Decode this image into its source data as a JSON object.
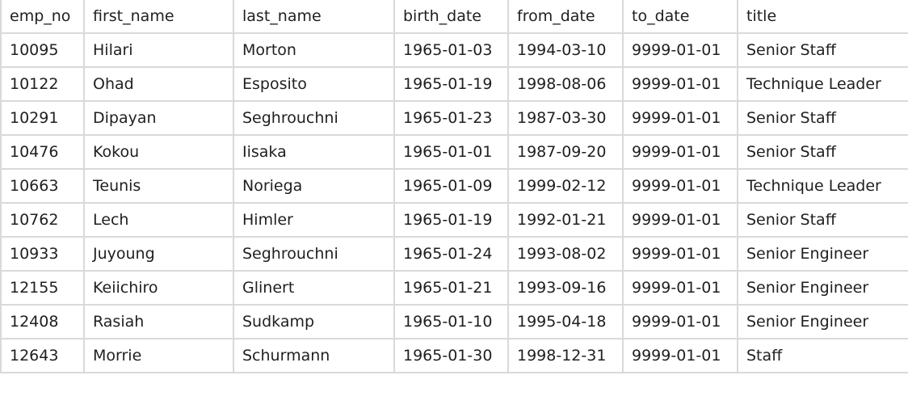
{
  "table": {
    "columns": [
      "emp_no",
      "first_name",
      "last_name",
      "birth_date",
      "from_date",
      "to_date",
      "title"
    ],
    "rows": [
      [
        "10095",
        "Hilari",
        "Morton",
        "1965-01-03",
        "1994-03-10",
        "9999-01-01",
        "Senior Staff"
      ],
      [
        "10122",
        "Ohad",
        "Esposito",
        "1965-01-19",
        "1998-08-06",
        "9999-01-01",
        "Technique Leader"
      ],
      [
        "10291",
        "Dipayan",
        "Seghrouchni",
        "1965-01-23",
        "1987-03-30",
        "9999-01-01",
        "Senior Staff"
      ],
      [
        "10476",
        "Kokou",
        "Iisaka",
        "1965-01-01",
        "1987-09-20",
        "9999-01-01",
        "Senior Staff"
      ],
      [
        "10663",
        "Teunis",
        "Noriega",
        "1965-01-09",
        "1999-02-12",
        "9999-01-01",
        "Technique Leader"
      ],
      [
        "10762",
        "Lech",
        "Himler",
        "1965-01-19",
        "1992-01-21",
        "9999-01-01",
        "Senior Staff"
      ],
      [
        "10933",
        "Juyoung",
        "Seghrouchni",
        "1965-01-24",
        "1993-08-02",
        "9999-01-01",
        "Senior Engineer"
      ],
      [
        "12155",
        "Keiichiro",
        "Glinert",
        "1965-01-21",
        "1993-09-16",
        "9999-01-01",
        "Senior Engineer"
      ],
      [
        "12408",
        "Rasiah",
        "Sudkamp",
        "1965-01-10",
        "1995-04-18",
        "9999-01-01",
        "Senior Engineer"
      ],
      [
        "12643",
        "Morrie",
        "Schurmann",
        "1965-01-30",
        "1998-12-31",
        "9999-01-01",
        "Staff"
      ]
    ]
  },
  "colors": {
    "border": "#d9d9d9",
    "text": "#1f1f1f",
    "background": "#ffffff"
  }
}
